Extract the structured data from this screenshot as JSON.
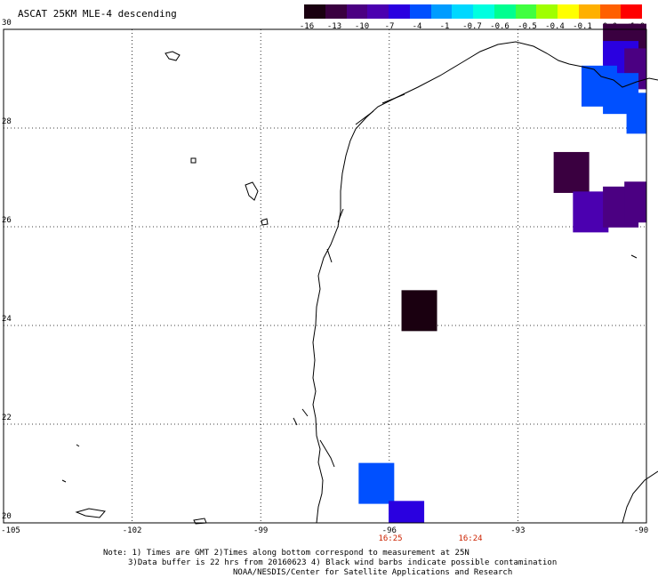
{
  "title": "ASCAT 25KM MLE-4 descending",
  "colorbar": {
    "colors": [
      "#1a0010",
      "#3a0040",
      "#4b0082",
      "#4b00b0",
      "#2a00e0",
      "#0050ff",
      "#009cff",
      "#00d8ff",
      "#00ffe0",
      "#00ff90",
      "#40ff40",
      "#a0ff00",
      "#ffff00",
      "#ffb000",
      "#ff6000",
      "#ff0000"
    ],
    "labels": [
      "-16",
      "-13",
      "-10",
      "-7",
      "-4",
      "-1",
      "-0.7",
      "-0.6",
      "-0.5",
      "-0.4",
      "-0.1",
      "0.0",
      "1.0"
    ]
  },
  "axes": {
    "lat_labels": [
      "30",
      "28",
      "26",
      "24",
      "22",
      "20"
    ],
    "lon_labels": [
      "-105",
      "-102",
      "-99",
      "-96",
      "-93",
      "-90"
    ]
  },
  "times": [
    "16:25",
    "16:24"
  ],
  "notes": [
    "Note: 1) Times are GMT 2)Times along bottom correspond to measurement at 25N",
    "3)Data buffer is 22 hrs from 20160623 4) Black wind barbs indicate possible contamination",
    "NOAA/NESDIS/Center for Satellite Applications and Research"
  ],
  "cells": [
    {
      "lon": -90.6,
      "lat": 29.7,
      "color": "#3a0040"
    },
    {
      "lon": -90.0,
      "lat": 29.7,
      "color": "#3a0040"
    },
    {
      "lon": -90.6,
      "lat": 29.35,
      "color": "#2a00e0"
    },
    {
      "lon": -90.1,
      "lat": 29.2,
      "color": "#4b0082"
    },
    {
      "lon": -91.1,
      "lat": 28.85,
      "color": "#0050ff"
    },
    {
      "lon": -90.6,
      "lat": 28.7,
      "color": "#0050ff"
    },
    {
      "lon": -90.05,
      "lat": 28.3,
      "color": "#0050ff"
    },
    {
      "lon": -91.75,
      "lat": 27.1,
      "color": "#3a0040"
    },
    {
      "lon": -91.3,
      "lat": 26.3,
      "color": "#4b00b0"
    },
    {
      "lon": -90.6,
      "lat": 26.4,
      "color": "#4b0082"
    },
    {
      "lon": -90.1,
      "lat": 26.5,
      "color": "#4b0082"
    },
    {
      "lon": -95.3,
      "lat": 24.3,
      "color": "#1a0010"
    },
    {
      "lon": -96.3,
      "lat": 20.8,
      "color": "#0050ff"
    },
    {
      "lon": -95.6,
      "lat": 20.03,
      "color": "#2a00e0"
    }
  ]
}
